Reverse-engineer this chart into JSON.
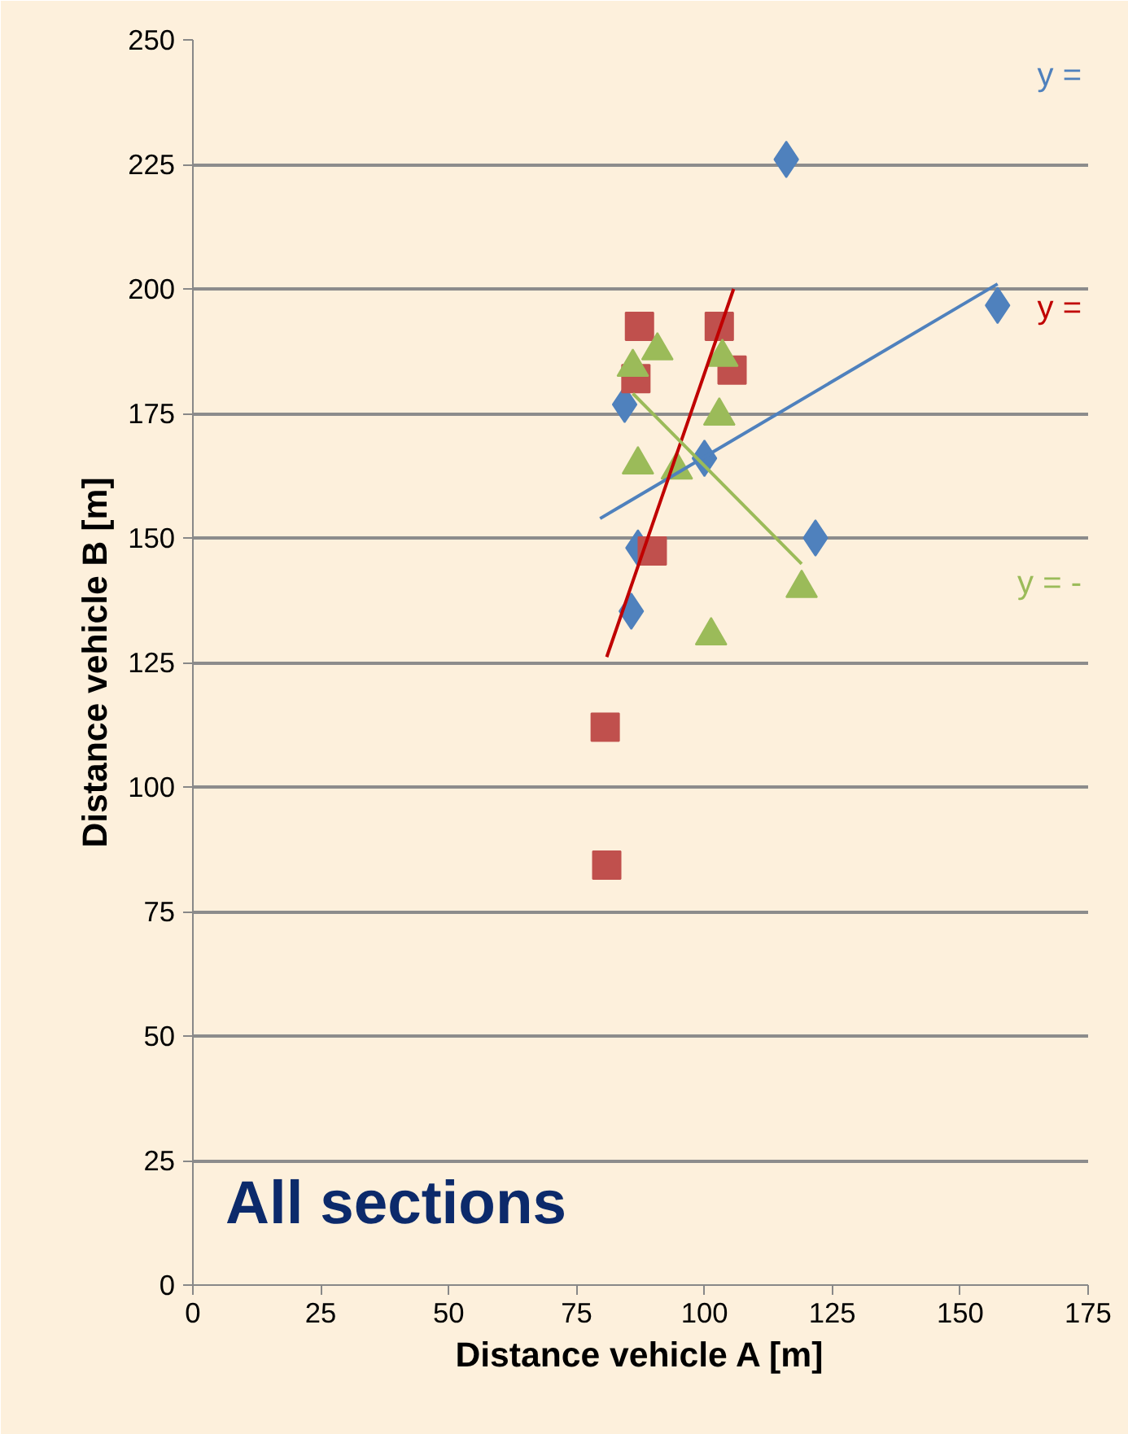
{
  "chart_data": {
    "type": "scatter",
    "xlabel": "Distance vehicle A [m]",
    "ylabel": "Distance vehicle B [m]",
    "xlim": [
      0,
      175
    ],
    "ylim": [
      0,
      250
    ],
    "xticks": [
      0,
      25,
      50,
      75,
      100,
      125,
      150,
      175
    ],
    "yticks": [
      0,
      25,
      50,
      75,
      100,
      125,
      150,
      175,
      200,
      225,
      250
    ],
    "grid": "y",
    "annotations": [
      "y =",
      "y =",
      "y = -",
      "All sections"
    ],
    "series": [
      {
        "color": "#4f81bd",
        "marker": "diamond",
        "x": [
          116,
          157.3,
          84.4,
          100,
          87,
          121.7,
          85.7
        ],
        "values": [
          226,
          196.7,
          176.8,
          166,
          148,
          150,
          135.3
        ]
      },
      {
        "color": "#c0504d",
        "marker": "square",
        "x": [
          87.3,
          102.9,
          105.4,
          86.6,
          89.8,
          80.6,
          80.9
        ],
        "values": [
          192.5,
          192.5,
          183.7,
          182,
          147.4,
          112,
          84.3
        ]
      },
      {
        "color": "#9bbb59",
        "marker": "triangle",
        "x": [
          90.8,
          86,
          103.5,
          102.9,
          87,
          94.6,
          119,
          101.3
        ],
        "values": [
          187.6,
          184.3,
          186.3,
          174.5,
          164.7,
          163.7,
          139.9,
          130.4
        ]
      },
      {
        "type": "line",
        "color": "#4f81bd",
        "x": [
          79.6,
          157.3
        ],
        "values": [
          153.9,
          201
        ]
      },
      {
        "type": "line",
        "color": "#c00000",
        "x": [
          80.9,
          105.7
        ],
        "values": [
          126.1,
          200
        ]
      },
      {
        "type": "line",
        "color": "#9bbb59",
        "x": [
          86,
          119
        ],
        "values": [
          179,
          144.8
        ]
      }
    ]
  }
}
